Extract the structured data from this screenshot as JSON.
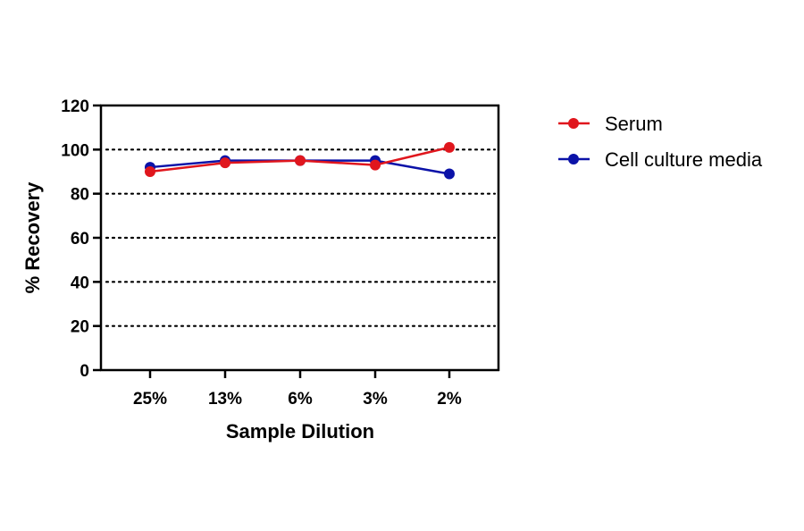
{
  "chart_data": {
    "type": "line",
    "title": "",
    "xlabel": "Sample Dilution",
    "ylabel": "% Recovery",
    "categories": [
      "25%",
      "13%",
      "6%",
      "3%",
      "2%"
    ],
    "ylim": [
      0,
      120
    ],
    "yticks": [
      "0",
      "20",
      "40",
      "60",
      "80",
      "100",
      "120"
    ],
    "grid": "horizontal dotted",
    "legend_position": "top-right",
    "series": [
      {
        "name": "Cell culture media",
        "color": "#0b12a8",
        "values": [
          92,
          95,
          95,
          95,
          89
        ]
      },
      {
        "name": "Serum",
        "color": "#e0161d",
        "values": [
          90,
          94,
          95,
          93,
          101
        ]
      }
    ],
    "legend_order": [
      1,
      0
    ]
  }
}
